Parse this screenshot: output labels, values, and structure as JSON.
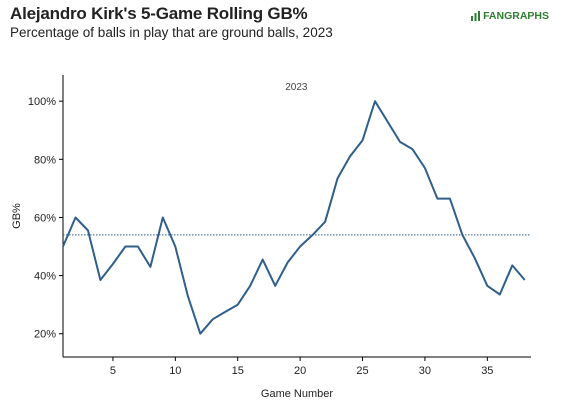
{
  "header": {
    "title": "Alejandro Kirk's 5-Game Rolling GB%",
    "subtitle": "Percentage of balls in play that are ground balls, 2023",
    "logo_text": "FANGRAPHS"
  },
  "colors": {
    "line": "#2f5f8a",
    "reference_line": "#2f5f8a",
    "axis": "#000000",
    "logo": "#2e7d32"
  },
  "chart_data": {
    "type": "line",
    "annotation": "2023",
    "xlabel": "Game Number",
    "ylabel": "GB%",
    "xlim": [
      1,
      38.5
    ],
    "ylim": [
      12,
      109
    ],
    "xticks": [
      5,
      10,
      15,
      20,
      25,
      30,
      35
    ],
    "yticks": [
      20,
      40,
      60,
      80,
      100
    ],
    "ytick_labels": [
      "20%",
      "40%",
      "60%",
      "80%",
      "100%"
    ],
    "grid": false,
    "reference_line_y": 54,
    "series": [
      {
        "x": [
          1,
          2,
          3,
          4,
          5,
          6,
          7,
          8,
          9,
          10,
          11,
          12,
          13,
          14,
          15,
          16,
          17,
          18,
          19,
          20,
          21,
          22,
          23,
          24,
          25,
          26,
          27,
          28,
          29,
          30,
          31,
          32,
          33,
          34,
          35,
          36,
          37,
          38
        ],
        "values": [
          50,
          60,
          55.5,
          38.5,
          44,
          50,
          50,
          43,
          60,
          50,
          33,
          20,
          25,
          27.5,
          30,
          36.5,
          45.5,
          36.5,
          44.5,
          50,
          54,
          58.5,
          73.5,
          81,
          86.5,
          100,
          93,
          86,
          83.5,
          77,
          66.5,
          66.5,
          54,
          46,
          36.5,
          33.5,
          43.5,
          38.5
        ]
      }
    ]
  }
}
